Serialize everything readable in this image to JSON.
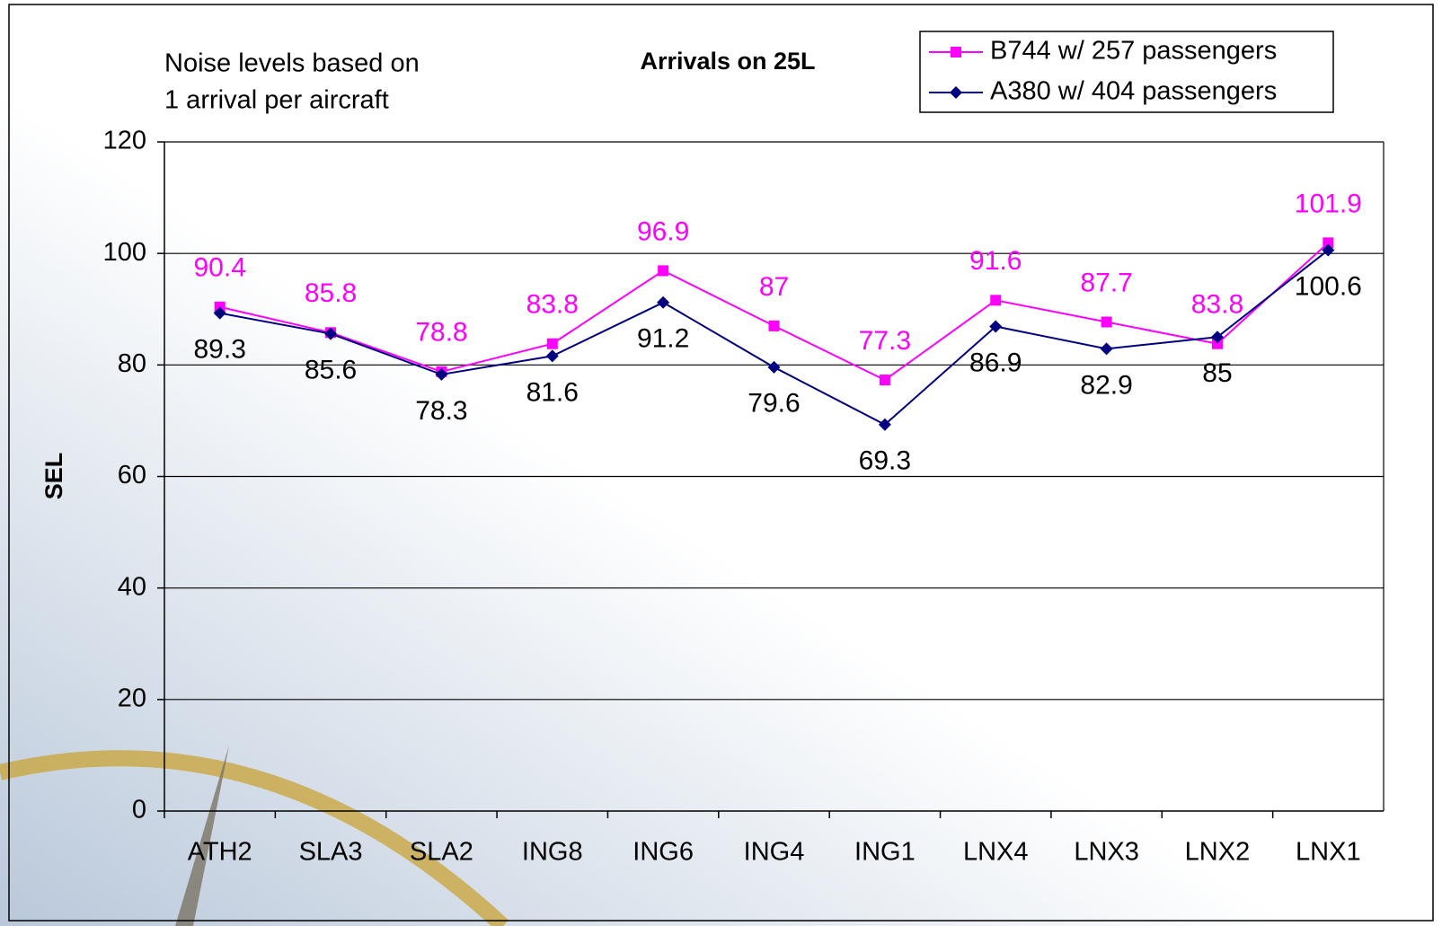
{
  "chart_data": {
    "type": "line",
    "title": "Arrivals on 25L",
    "annotations": [
      "Noise levels based on",
      "1 arrival per aircraft"
    ],
    "y_label": "SEL",
    "categories": [
      "ATH2",
      "SLA3",
      "SLA2",
      "ING8",
      "ING6",
      "ING4",
      "ING1",
      "LNX4",
      "LNX3",
      "LNX2",
      "LNX1"
    ],
    "series": [
      {
        "name": "B744 w/ 257 passengers",
        "color": "#ff00ff",
        "marker": "square",
        "values": [
          90.4,
          85.8,
          78.8,
          83.8,
          96.9,
          87,
          77.3,
          91.6,
          87.7,
          83.8,
          101.9
        ]
      },
      {
        "name": "A380 w/ 404 passengers",
        "color": "#000080",
        "marker": "diamond",
        "values": [
          89.3,
          85.6,
          78.3,
          81.6,
          91.2,
          79.6,
          69.3,
          86.9,
          82.9,
          85,
          100.6
        ]
      }
    ],
    "ylim": [
      0,
      120
    ],
    "yticks": [
      0,
      20,
      40,
      60,
      80,
      100,
      120
    ],
    "grid": true
  }
}
